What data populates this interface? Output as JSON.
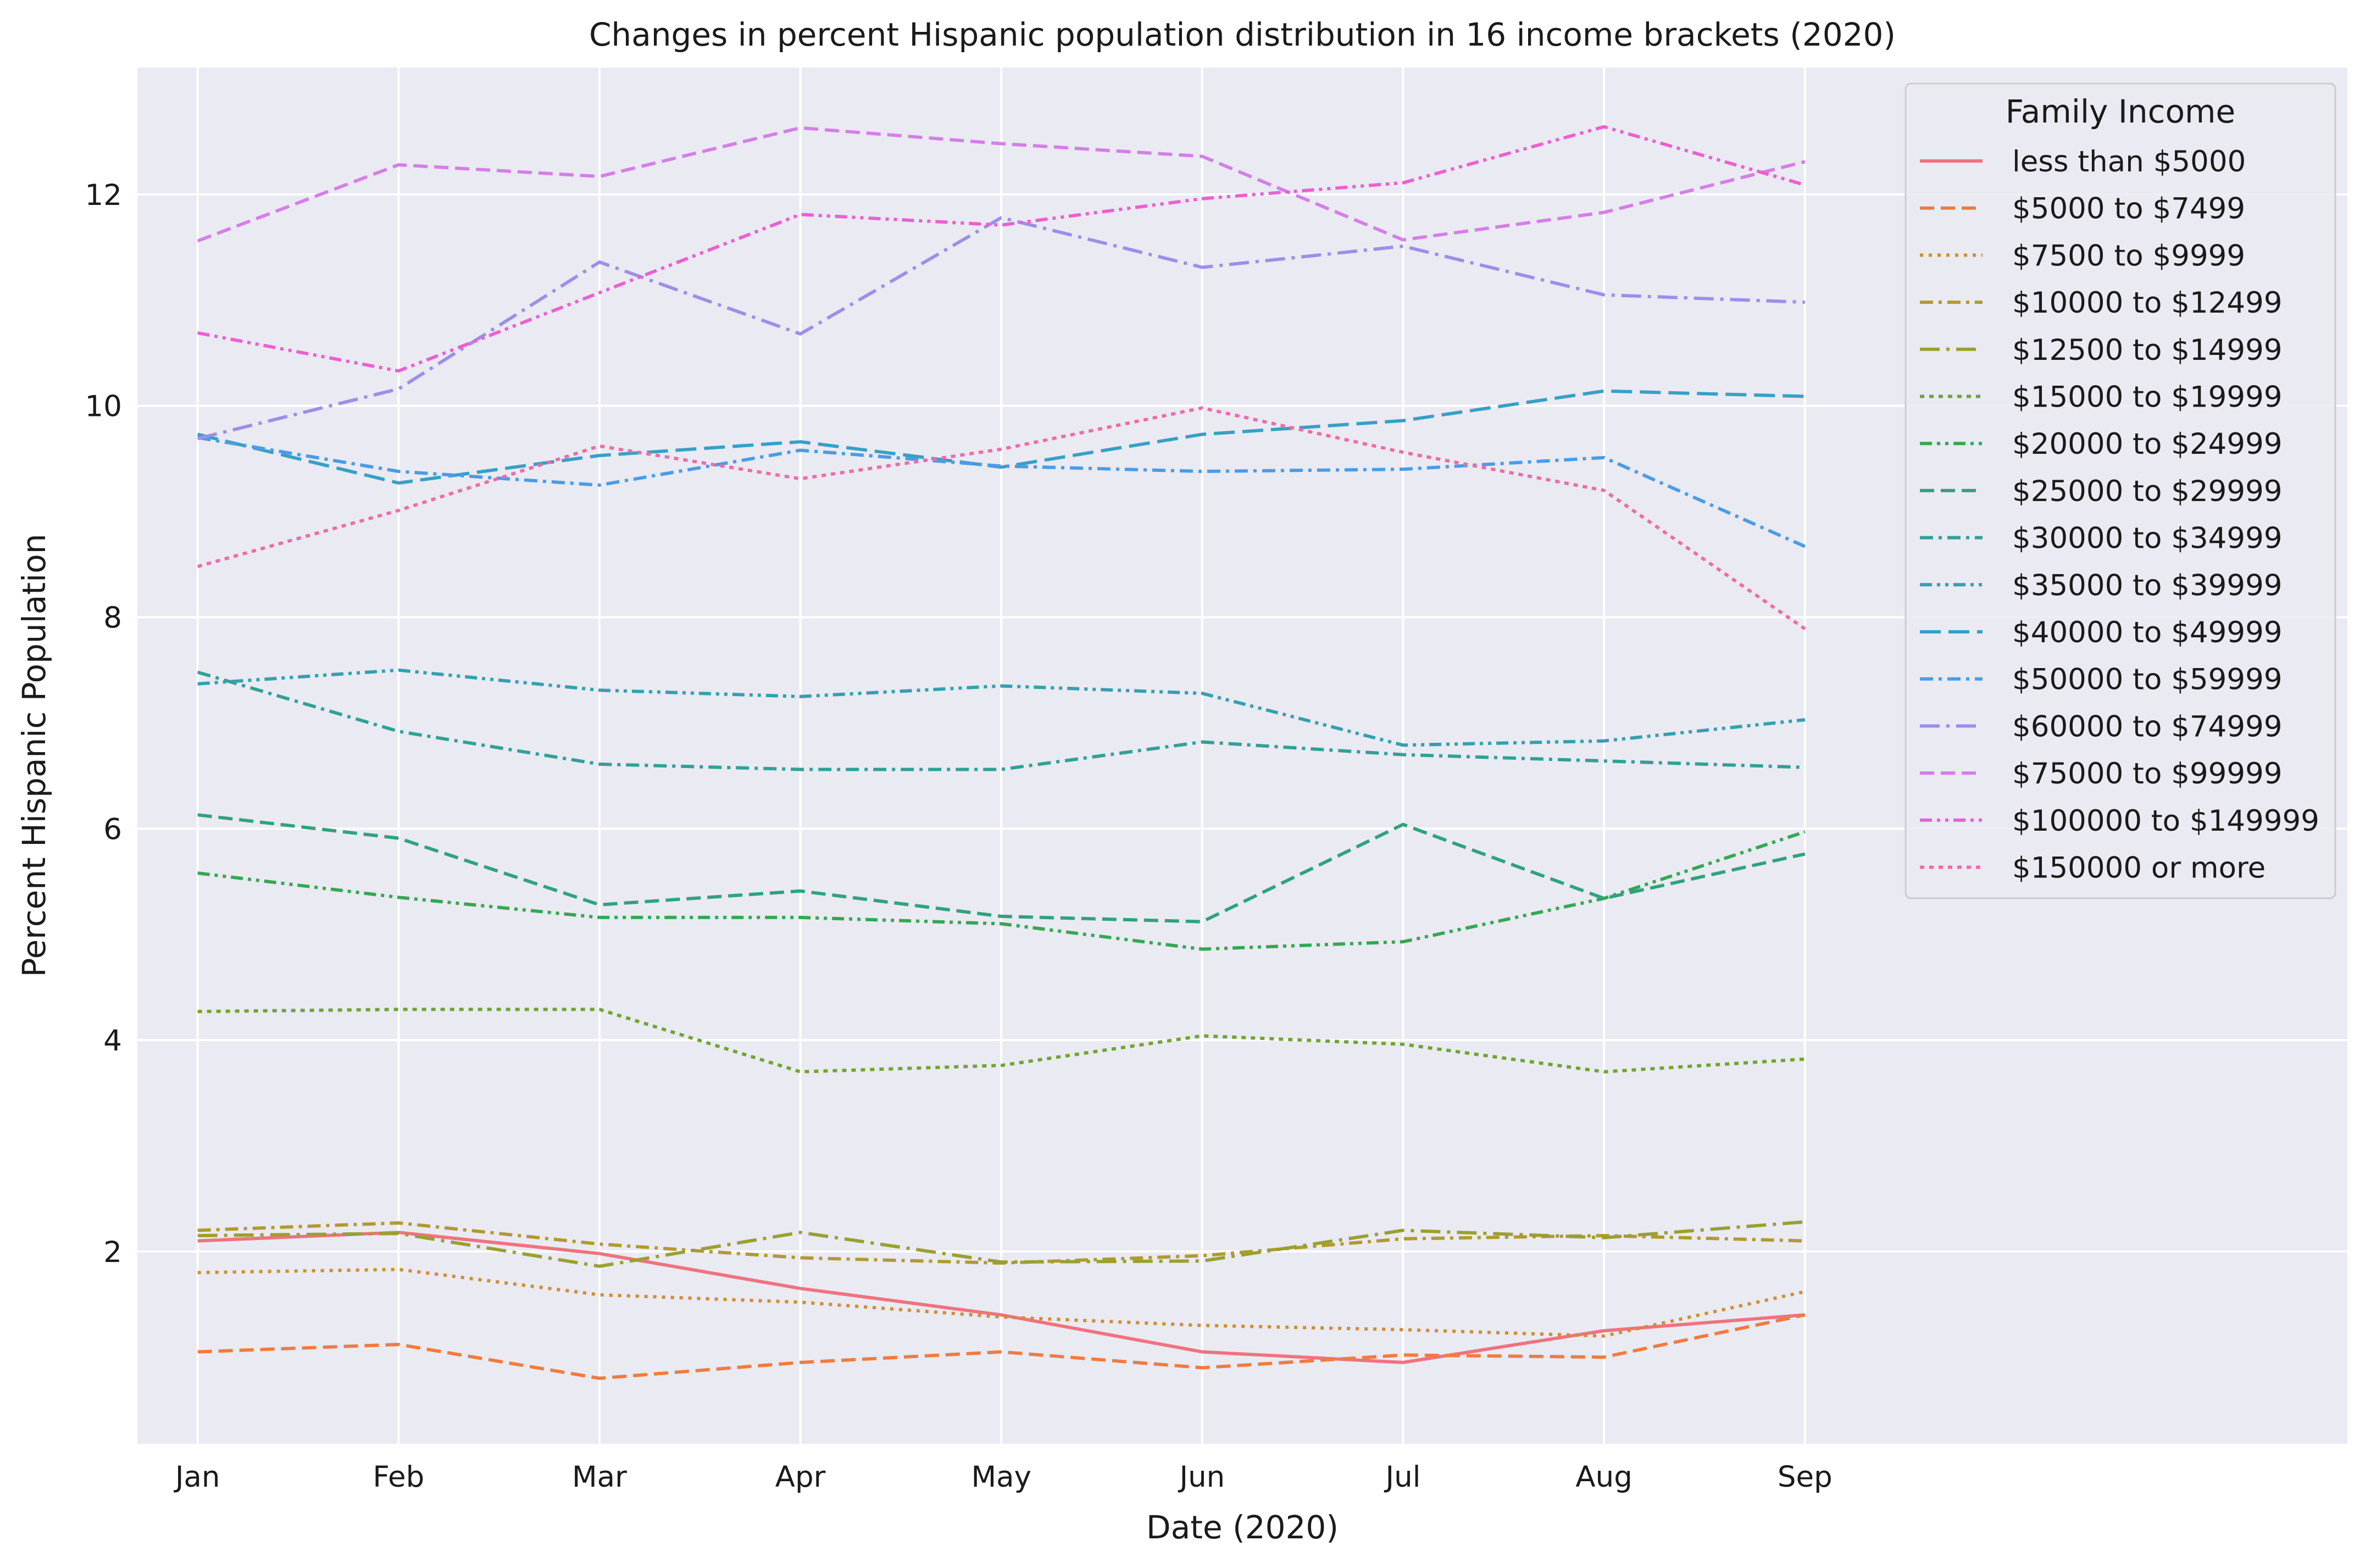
{
  "chart_data": {
    "type": "line",
    "title": "Changes in percent Hispanic population distribution in 16 income brackets (2020)",
    "xlabel": "Date (2020)",
    "ylabel": "Percent Hispanic Population",
    "x": [
      "Jan",
      "Feb",
      "Mar",
      "Apr",
      "May",
      "Jun",
      "Jul",
      "Aug",
      "Sep"
    ],
    "xlim": [
      -0.3,
      10.7
    ],
    "ylim": [
      0.18,
      13.2
    ],
    "yticks": [
      "2",
      "4",
      "6",
      "8",
      "10",
      "12"
    ],
    "grid": true,
    "legend_title": "Family Income",
    "legend_position": "top-right",
    "series": [
      {
        "name": "less than $5000",
        "color": "#f0727f",
        "dash": "solid",
        "values": [
          2.1,
          2.18,
          1.98,
          1.65,
          1.4,
          1.05,
          0.95,
          1.25,
          1.4
        ]
      },
      {
        "name": "$5000 to $7499",
        "color": "#f07b3f",
        "dash": "dashed",
        "values": [
          1.05,
          1.12,
          0.8,
          0.95,
          1.05,
          0.9,
          1.02,
          1.0,
          1.4
        ]
      },
      {
        "name": "$7500 to $9999",
        "color": "#d08e30",
        "dash": "dotted",
        "values": [
          1.8,
          1.83,
          1.59,
          1.52,
          1.38,
          1.3,
          1.26,
          1.2,
          1.62
        ]
      },
      {
        "name": "$10000 to $12499",
        "color": "#b19a30",
        "dash": "dashdot",
        "values": [
          2.2,
          2.27,
          2.07,
          1.94,
          1.89,
          1.96,
          2.12,
          2.15,
          2.1
        ]
      },
      {
        "name": "$12500 to $14999",
        "color": "#99a030",
        "dash": "longdashdot",
        "values": [
          2.15,
          2.17,
          1.86,
          2.18,
          1.9,
          1.91,
          2.2,
          2.13,
          2.28
        ]
      },
      {
        "name": "$15000 to $19999",
        "color": "#6fa52e",
        "dash": "densedot",
        "values": [
          4.27,
          4.29,
          4.29,
          3.7,
          3.76,
          4.04,
          3.96,
          3.7,
          3.82
        ]
      },
      {
        "name": "$20000 to $24999",
        "color": "#33a852",
        "dash": "dashdotdot",
        "values": [
          5.58,
          5.35,
          5.16,
          5.16,
          5.1,
          4.86,
          4.93,
          5.34,
          5.97
        ]
      },
      {
        "name": "$25000 to $29999",
        "color": "#2ea37e",
        "dash": "dashed",
        "values": [
          6.13,
          5.91,
          5.28,
          5.41,
          5.17,
          5.12,
          6.04,
          5.34,
          5.76
        ]
      },
      {
        "name": "$30000 to $34999",
        "color": "#30a196",
        "dash": "dashdot",
        "values": [
          7.48,
          6.92,
          6.61,
          6.56,
          6.56,
          6.82,
          6.7,
          6.64,
          6.58
        ]
      },
      {
        "name": "$35000 to $39999",
        "color": "#33a0b0",
        "dash": "dashdotdot",
        "values": [
          7.37,
          7.5,
          7.31,
          7.25,
          7.35,
          7.28,
          6.79,
          6.83,
          7.03
        ]
      },
      {
        "name": "$40000 to $49999",
        "color": "#36a0c6",
        "dash": "longdash",
        "values": [
          9.73,
          9.27,
          9.53,
          9.66,
          9.42,
          9.73,
          9.86,
          10.14,
          10.09
        ]
      },
      {
        "name": "$50000 to $59999",
        "color": "#4a9ce6",
        "dash": "dashdot",
        "values": [
          9.7,
          9.38,
          9.25,
          9.58,
          9.43,
          9.38,
          9.4,
          9.51,
          8.67
        ]
      },
      {
        "name": "$60000 to $74999",
        "color": "#9d8ee8",
        "dash": "longdashdot",
        "values": [
          9.69,
          10.16,
          11.36,
          10.68,
          11.78,
          11.31,
          11.51,
          11.05,
          10.98
        ]
      },
      {
        "name": "$75000 to $99999",
        "color": "#d57ee8",
        "dash": "dashed",
        "values": [
          11.56,
          12.28,
          12.17,
          12.63,
          12.48,
          12.36,
          11.57,
          11.83,
          12.31
        ]
      },
      {
        "name": "$100000 to $149999",
        "color": "#ec5fd1",
        "dash": "dashdotdot",
        "values": [
          10.69,
          10.33,
          11.07,
          11.81,
          11.71,
          11.96,
          12.11,
          12.64,
          12.09
        ]
      },
      {
        "name": "$150000 or more",
        "color": "#f06aa8",
        "dash": "densedot",
        "values": [
          8.48,
          9.01,
          9.62,
          9.31,
          9.59,
          9.98,
          9.56,
          9.2,
          7.89
        ]
      }
    ]
  }
}
